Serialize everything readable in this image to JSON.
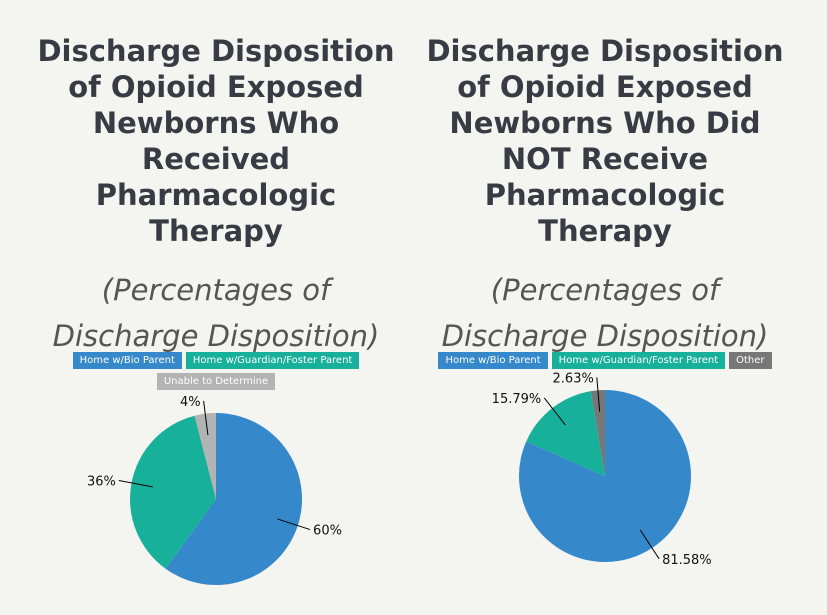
{
  "chart_data": [
    {
      "type": "pie",
      "title": "Discharge Disposition of Opioid Exposed Newborns Who Received Pharmacologic Therapy",
      "subtitle": "(Percentages of Discharge Disposition)",
      "categories": [
        "Home w/Bio Parent",
        "Home w/Guardian/Foster Parent",
        "Unable to Determine"
      ],
      "values": [
        60,
        36,
        4
      ],
      "labels": [
        "60%",
        "36%",
        "4%"
      ],
      "colors": [
        "#3588c9",
        "#17b09a",
        "#b3b3b3"
      ],
      "legend": "top"
    },
    {
      "type": "pie",
      "title": "Discharge Disposition of Opioid Exposed Newborns Who Did NOT Receive Pharmacologic Therapy",
      "subtitle": "(Percentages of Discharge Disposition)",
      "categories": [
        "Home w/Bio Parent",
        "Home w/Guardian/Foster Parent",
        "Other"
      ],
      "values": [
        81.58,
        15.79,
        2.63
      ],
      "labels": [
        "81.58%",
        "15.79%",
        "2.63%"
      ],
      "colors": [
        "#3588c9",
        "#17b09a",
        "#777777"
      ],
      "legend": "top"
    }
  ]
}
